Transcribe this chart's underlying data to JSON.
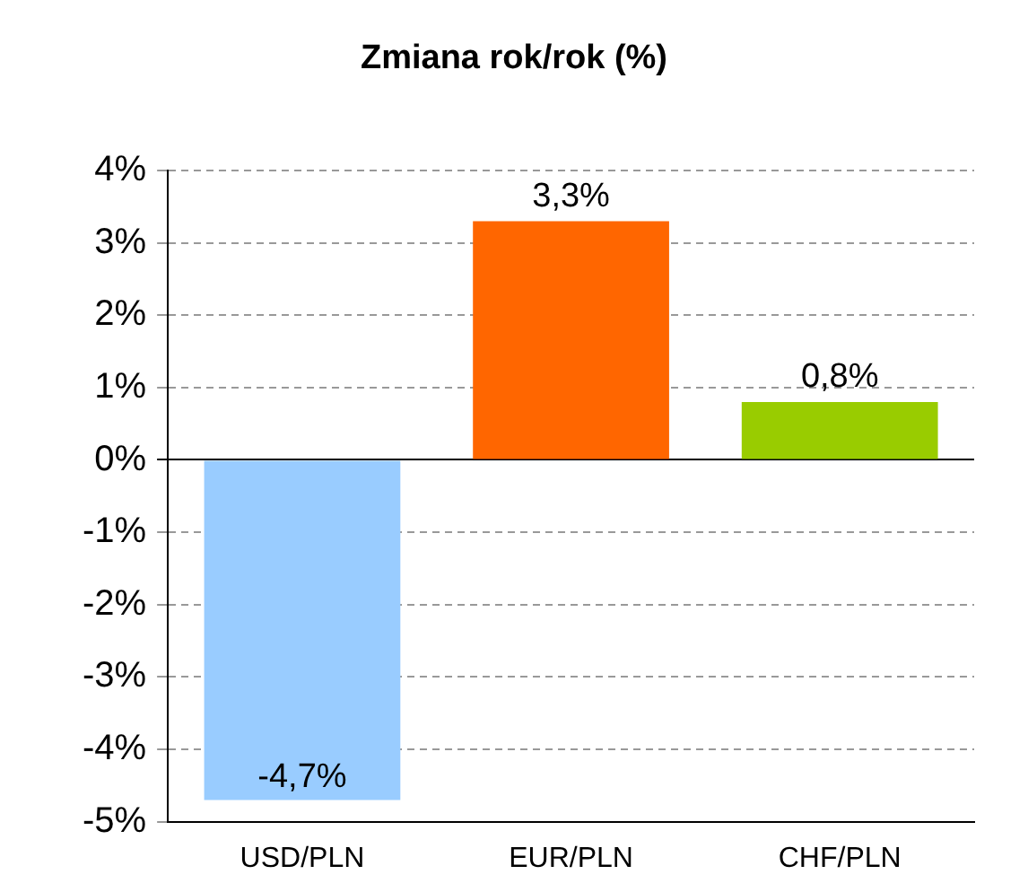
{
  "chart_data": {
    "type": "bar",
    "title": "Zmiana rok/rok (%)",
    "categories": [
      "USD/PLN",
      "EUR/PLN",
      "CHF/PLN"
    ],
    "values": [
      -4.7,
      3.3,
      0.8
    ],
    "colors": [
      "#99ccff",
      "#ff6600",
      "#99cc00"
    ],
    "value_labels": [
      "-4,7%",
      "3,3%",
      "0,8%"
    ],
    "ylim": [
      -5,
      4
    ],
    "yticks": [
      {
        "value": -5,
        "label": "-5%"
      },
      {
        "value": -4,
        "label": "-4%"
      },
      {
        "value": -3,
        "label": "-3%"
      },
      {
        "value": -2,
        "label": "-2%"
      },
      {
        "value": -1,
        "label": "-1%"
      },
      {
        "value": 0,
        "label": "0%"
      },
      {
        "value": 1,
        "label": "1%"
      },
      {
        "value": 2,
        "label": "2%"
      },
      {
        "value": 3,
        "label": "3%"
      },
      {
        "value": 4,
        "label": "4%"
      }
    ],
    "grid": "y",
    "legend": false
  }
}
